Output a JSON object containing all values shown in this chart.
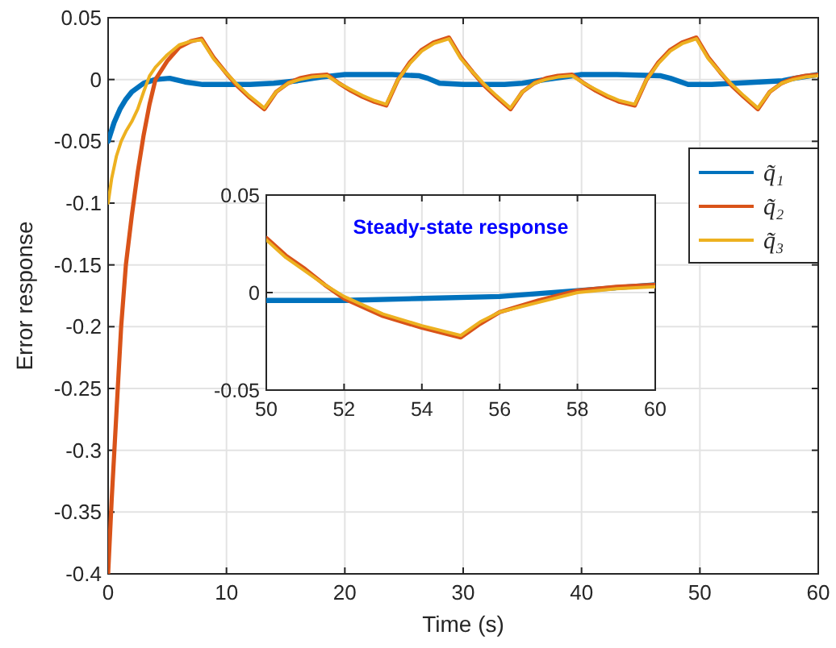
{
  "chart_data": [
    {
      "type": "line",
      "xlabel": "Time (s)",
      "ylabel": "Error response",
      "xlim": [
        0,
        60
      ],
      "ylim": [
        -0.4,
        0.05
      ],
      "xticks": [
        0,
        10,
        20,
        30,
        40,
        50,
        60
      ],
      "yticks": [
        -0.4,
        -0.35,
        -0.3,
        -0.25,
        -0.2,
        -0.15,
        -0.1,
        -0.05,
        0,
        0.05
      ],
      "grid": true,
      "legend": "right",
      "series": [
        {
          "name": "q̃₁",
          "color": "#0072bd",
          "x": [
            0,
            0.5,
            1,
            1.5,
            2,
            3,
            4,
            5.2,
            6.5,
            8,
            10,
            12,
            14,
            16,
            18,
            20,
            22,
            24,
            26.3,
            27,
            28,
            30,
            32,
            33.5,
            35,
            37,
            40,
            43,
            46.7,
            47.5,
            49,
            51,
            53,
            55,
            57,
            58,
            60
          ],
          "values": [
            -0.05,
            -0.035,
            -0.024,
            -0.016,
            -0.01,
            -0.003,
            0,
            0.001,
            -0.002,
            -0.004,
            -0.004,
            -0.004,
            -0.003,
            -0.001,
            0.002,
            0.004,
            0.004,
            0.004,
            0.003,
            0.001,
            -0.003,
            -0.004,
            -0.004,
            -0.004,
            -0.003,
            0,
            0.004,
            0.004,
            0.003,
            0.001,
            -0.004,
            -0.004,
            -0.003,
            -0.002,
            -0.001,
            0.001,
            0.004
          ]
        },
        {
          "name": "q̃₂",
          "color": "#d95319",
          "x": [
            0,
            0.3,
            0.7,
            1.1,
            1.5,
            2,
            2.5,
            3,
            3.5,
            4,
            5,
            6,
            7,
            7.9,
            8.9,
            9.9,
            10.9,
            11.9,
            13.2,
            14.2,
            15.2,
            16.2,
            17.2,
            18.5,
            19.5,
            20.5,
            21.5,
            22.5,
            23.5,
            24.5,
            25.5,
            26.5,
            27.5,
            28.8,
            29.8,
            30.8,
            31.8,
            32.8,
            34,
            35,
            36,
            37,
            38,
            39.2,
            40.2,
            41.2,
            42.2,
            43.2,
            44.5,
            45.5,
            46.5,
            47.5,
            48.5,
            49.7,
            50.7,
            51.7,
            52.7,
            53.7,
            54.9,
            55.9,
            56.9,
            57.9,
            58.9,
            60
          ],
          "values": [
            -0.4,
            -0.34,
            -0.27,
            -0.2,
            -0.15,
            -0.11,
            -0.075,
            -0.045,
            -0.02,
            0,
            0.015,
            0.026,
            0.031,
            0.033,
            0.018,
            0.006,
            -0.005,
            -0.014,
            -0.024,
            -0.01,
            -0.003,
            0.001,
            0.003,
            0.004,
            -0.003,
            -0.009,
            -0.014,
            -0.018,
            -0.021,
            0,
            0.014,
            0.024,
            0.03,
            0.034,
            0.018,
            0.006,
            -0.005,
            -0.014,
            -0.024,
            -0.01,
            -0.003,
            0.001,
            0.003,
            0.004,
            -0.003,
            -0.009,
            -0.014,
            -0.018,
            -0.021,
            0,
            0.014,
            0.024,
            0.03,
            0.034,
            0.018,
            0.006,
            -0.005,
            -0.014,
            -0.024,
            -0.01,
            -0.003,
            0.001,
            0.003,
            0.004
          ]
        },
        {
          "name": "q̃₃",
          "color": "#edb120",
          "x": [
            0,
            0.3,
            0.7,
            1.1,
            1.5,
            2,
            2.5,
            3,
            3.5,
            4,
            5,
            6,
            7,
            7.9,
            8.9,
            9.9,
            10.9,
            11.9,
            13.2,
            14.2,
            15.2,
            16.2,
            17.2,
            18.5,
            19.5,
            20.5,
            21.5,
            22.5,
            23.5,
            24.5,
            25.5,
            26.5,
            27.5,
            28.8,
            29.8,
            30.8,
            31.8,
            32.8,
            34,
            35,
            36,
            37,
            38,
            39.2,
            40.2,
            41.2,
            42.2,
            43.2,
            44.5,
            45.5,
            46.5,
            47.5,
            48.5,
            49.7,
            50.7,
            51.7,
            52.7,
            53.7,
            54.9,
            55.9,
            56.9,
            57.9,
            58.9,
            60
          ],
          "values": [
            -0.1,
            -0.08,
            -0.062,
            -0.05,
            -0.042,
            -0.034,
            -0.024,
            -0.01,
            0.003,
            0.01,
            0.02,
            0.028,
            0.031,
            0.032,
            0.017,
            0.006,
            -0.004,
            -0.013,
            -0.023,
            -0.01,
            -0.003,
            0,
            0.002,
            0.003,
            -0.003,
            -0.008,
            -0.013,
            -0.017,
            -0.02,
            0,
            0.013,
            0.023,
            0.029,
            0.033,
            0.017,
            0.006,
            -0.004,
            -0.013,
            -0.023,
            -0.01,
            -0.003,
            0,
            0.002,
            0.003,
            -0.003,
            -0.008,
            -0.013,
            -0.017,
            -0.02,
            0,
            0.013,
            0.023,
            0.029,
            0.033,
            0.017,
            0.006,
            -0.004,
            -0.013,
            -0.023,
            -0.01,
            -0.003,
            0,
            0.002,
            0.003
          ]
        }
      ]
    },
    {
      "type": "line",
      "title": "Steady-state response",
      "xlim": [
        50,
        60
      ],
      "ylim": [
        -0.05,
        0.05
      ],
      "xticks": [
        50,
        52,
        54,
        56,
        58,
        60
      ],
      "yticks": [
        -0.05,
        0,
        0.05
      ],
      "grid": true,
      "series": [
        {
          "color": "#0072bd",
          "x": [
            50,
            52,
            54,
            56,
            58,
            60
          ],
          "values": [
            -0.004,
            -0.004,
            -0.003,
            -0.002,
            0.001,
            0.004
          ]
        },
        {
          "color": "#d95319",
          "x": [
            50,
            50.5,
            51,
            51.5,
            52,
            53,
            54,
            55,
            55.5,
            56,
            57,
            58,
            59,
            60
          ],
          "values": [
            0.028,
            0.019,
            0.012,
            0.004,
            -0.003,
            -0.012,
            -0.018,
            -0.023,
            -0.016,
            -0.01,
            -0.004,
            0.001,
            0.003,
            0.004
          ]
        },
        {
          "color": "#edb120",
          "x": [
            50,
            50.5,
            51,
            51.5,
            52,
            53,
            54,
            55,
            55.5,
            56,
            57,
            58,
            59,
            60
          ],
          "values": [
            0.027,
            0.018,
            0.011,
            0.004,
            -0.002,
            -0.011,
            -0.017,
            -0.022,
            -0.015,
            -0.01,
            -0.005,
            0,
            0.002,
            0.003
          ]
        }
      ]
    }
  ]
}
